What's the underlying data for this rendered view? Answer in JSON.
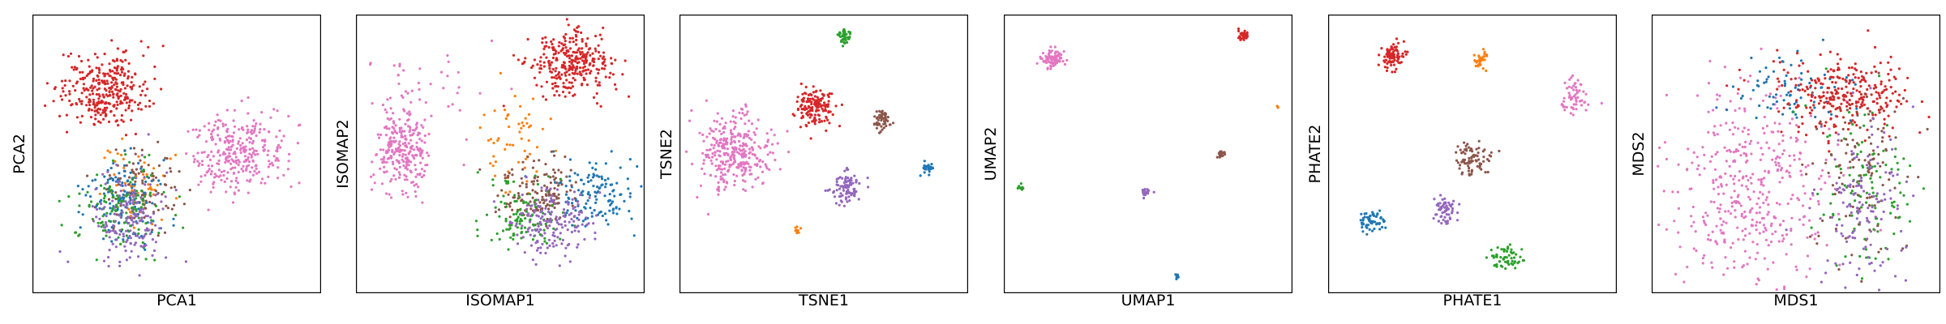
{
  "palette": {
    "blue": "#1f77b4",
    "orange": "#ff7f0e",
    "green": "#2ca02c",
    "red": "#d62728",
    "purple": "#9467bd",
    "brown": "#8c564b",
    "pink": "#e377c2"
  },
  "chart_data": [
    {
      "type": "scatter",
      "xlabel": "PCA1",
      "ylabel": "PCA2",
      "xlim": [
        0,
        1
      ],
      "ylim": [
        0,
        1
      ],
      "ticks": "none",
      "grid": false,
      "clusters": [
        {
          "color": "red",
          "cx": 0.25,
          "cy": 0.73,
          "sx": 0.075,
          "sy": 0.065,
          "n": 320
        },
        {
          "color": "pink",
          "cx": 0.71,
          "cy": 0.51,
          "sx": 0.085,
          "sy": 0.07,
          "n": 300
        },
        {
          "color": "orange",
          "cx": 0.35,
          "cy": 0.4,
          "sx": 0.06,
          "sy": 0.07,
          "n": 60
        },
        {
          "color": "brown",
          "cx": 0.37,
          "cy": 0.37,
          "sx": 0.065,
          "sy": 0.07,
          "n": 110
        },
        {
          "color": "blue",
          "cx": 0.32,
          "cy": 0.32,
          "sx": 0.07,
          "sy": 0.08,
          "n": 130
        },
        {
          "color": "green",
          "cx": 0.3,
          "cy": 0.31,
          "sx": 0.08,
          "sy": 0.08,
          "n": 120
        },
        {
          "color": "purple",
          "cx": 0.34,
          "cy": 0.26,
          "sx": 0.065,
          "sy": 0.09,
          "n": 160
        }
      ]
    },
    {
      "type": "scatter",
      "xlabel": "ISOMAP1",
      "ylabel": "ISOMAP2",
      "xlim": [
        0,
        1
      ],
      "ylim": [
        0,
        1
      ],
      "ticks": "none",
      "grid": false,
      "clusters": [
        {
          "color": "red",
          "cx": 0.74,
          "cy": 0.82,
          "sx": 0.07,
          "sy": 0.055,
          "n": 300
        },
        {
          "color": "pink",
          "cx": 0.16,
          "cy": 0.52,
          "sx": 0.05,
          "sy": 0.08,
          "n": 260
        },
        {
          "color": "pink",
          "cx": 0.22,
          "cy": 0.72,
          "sx": 0.12,
          "sy": 0.12,
          "n": 40
        },
        {
          "color": "orange",
          "cx": 0.55,
          "cy": 0.54,
          "sx": 0.06,
          "sy": 0.08,
          "n": 55
        },
        {
          "color": "blue",
          "cx": 0.83,
          "cy": 0.35,
          "sx": 0.07,
          "sy": 0.06,
          "n": 130
        },
        {
          "color": "brown",
          "cx": 0.63,
          "cy": 0.36,
          "sx": 0.07,
          "sy": 0.06,
          "n": 140
        },
        {
          "color": "green",
          "cx": 0.58,
          "cy": 0.28,
          "sx": 0.07,
          "sy": 0.06,
          "n": 110
        },
        {
          "color": "purple",
          "cx": 0.68,
          "cy": 0.25,
          "sx": 0.07,
          "sy": 0.06,
          "n": 170
        }
      ]
    },
    {
      "type": "scatter",
      "xlabel": "TSNE1",
      "ylabel": "TSNE2",
      "xlim": [
        0,
        1
      ],
      "ylim": [
        0,
        1
      ],
      "ticks": "none",
      "grid": false,
      "clusters": [
        {
          "color": "pink",
          "cx": 0.19,
          "cy": 0.51,
          "sx": 0.06,
          "sy": 0.065,
          "n": 320
        },
        {
          "color": "red",
          "cx": 0.47,
          "cy": 0.67,
          "sx": 0.03,
          "sy": 0.035,
          "n": 150
        },
        {
          "color": "green",
          "cx": 0.57,
          "cy": 0.92,
          "sx": 0.012,
          "sy": 0.015,
          "n": 45
        },
        {
          "color": "brown",
          "cx": 0.7,
          "cy": 0.62,
          "sx": 0.018,
          "sy": 0.022,
          "n": 60
        },
        {
          "color": "purple",
          "cx": 0.58,
          "cy": 0.38,
          "sx": 0.025,
          "sy": 0.03,
          "n": 90
        },
        {
          "color": "blue",
          "cx": 0.86,
          "cy": 0.45,
          "sx": 0.01,
          "sy": 0.012,
          "n": 25
        },
        {
          "color": "orange",
          "cx": 0.41,
          "cy": 0.23,
          "sx": 0.006,
          "sy": 0.007,
          "n": 10
        }
      ]
    },
    {
      "type": "scatter",
      "xlabel": "UMAP1",
      "ylabel": "UMAP2",
      "xlim": [
        0,
        1
      ],
      "ylim": [
        0,
        1
      ],
      "ticks": "none",
      "grid": false,
      "clusters": [
        {
          "color": "pink",
          "cx": 0.17,
          "cy": 0.84,
          "sx": 0.02,
          "sy": 0.015,
          "n": 90
        },
        {
          "color": "red",
          "cx": 0.83,
          "cy": 0.93,
          "sx": 0.01,
          "sy": 0.01,
          "n": 35
        },
        {
          "color": "orange",
          "cx": 0.95,
          "cy": 0.67,
          "sx": 0.003,
          "sy": 0.003,
          "n": 4
        },
        {
          "color": "brown",
          "cx": 0.75,
          "cy": 0.5,
          "sx": 0.007,
          "sy": 0.007,
          "n": 20
        },
        {
          "color": "purple",
          "cx": 0.49,
          "cy": 0.36,
          "sx": 0.009,
          "sy": 0.008,
          "n": 25
        },
        {
          "color": "green",
          "cx": 0.06,
          "cy": 0.38,
          "sx": 0.006,
          "sy": 0.006,
          "n": 10
        },
        {
          "color": "blue",
          "cx": 0.6,
          "cy": 0.06,
          "sx": 0.005,
          "sy": 0.005,
          "n": 10
        }
      ]
    },
    {
      "type": "scatter",
      "xlabel": "PHATE1",
      "ylabel": "PHATE2",
      "xlim": [
        0,
        1
      ],
      "ylim": [
        0,
        1
      ],
      "ticks": "none",
      "grid": false,
      "clusters": [
        {
          "color": "red",
          "cx": 0.22,
          "cy": 0.85,
          "sx": 0.02,
          "sy": 0.025,
          "n": 90
        },
        {
          "color": "orange",
          "cx": 0.53,
          "cy": 0.83,
          "sx": 0.01,
          "sy": 0.02,
          "n": 35
        },
        {
          "color": "pink",
          "cx": 0.85,
          "cy": 0.7,
          "sx": 0.025,
          "sy": 0.035,
          "n": 60
        },
        {
          "color": "brown",
          "cx": 0.5,
          "cy": 0.48,
          "sx": 0.03,
          "sy": 0.03,
          "n": 80
        },
        {
          "color": "purple",
          "cx": 0.41,
          "cy": 0.3,
          "sx": 0.02,
          "sy": 0.025,
          "n": 60
        },
        {
          "color": "blue",
          "cx": 0.15,
          "cy": 0.26,
          "sx": 0.02,
          "sy": 0.02,
          "n": 60
        },
        {
          "color": "green",
          "cx": 0.61,
          "cy": 0.13,
          "sx": 0.025,
          "sy": 0.02,
          "n": 60
        }
      ]
    },
    {
      "type": "scatter",
      "xlabel": "MDS1",
      "ylabel": "MDS2",
      "xlim": [
        0,
        1
      ],
      "ylim": [
        0,
        1
      ],
      "ticks": "none",
      "grid": false,
      "clusters": [
        {
          "color": "pink",
          "cx": 0.34,
          "cy": 0.38,
          "sx": 0.14,
          "sy": 0.17,
          "n": 420
        },
        {
          "color": "blue",
          "cx": 0.48,
          "cy": 0.73,
          "sx": 0.1,
          "sy": 0.07,
          "n": 80
        },
        {
          "color": "green",
          "cx": 0.74,
          "cy": 0.38,
          "sx": 0.08,
          "sy": 0.15,
          "n": 110
        },
        {
          "color": "brown",
          "cx": 0.72,
          "cy": 0.45,
          "sx": 0.08,
          "sy": 0.15,
          "n": 120
        },
        {
          "color": "purple",
          "cx": 0.72,
          "cy": 0.32,
          "sx": 0.08,
          "sy": 0.15,
          "n": 140
        },
        {
          "color": "red",
          "cx": 0.66,
          "cy": 0.71,
          "sx": 0.13,
          "sy": 0.07,
          "n": 280
        }
      ]
    }
  ]
}
